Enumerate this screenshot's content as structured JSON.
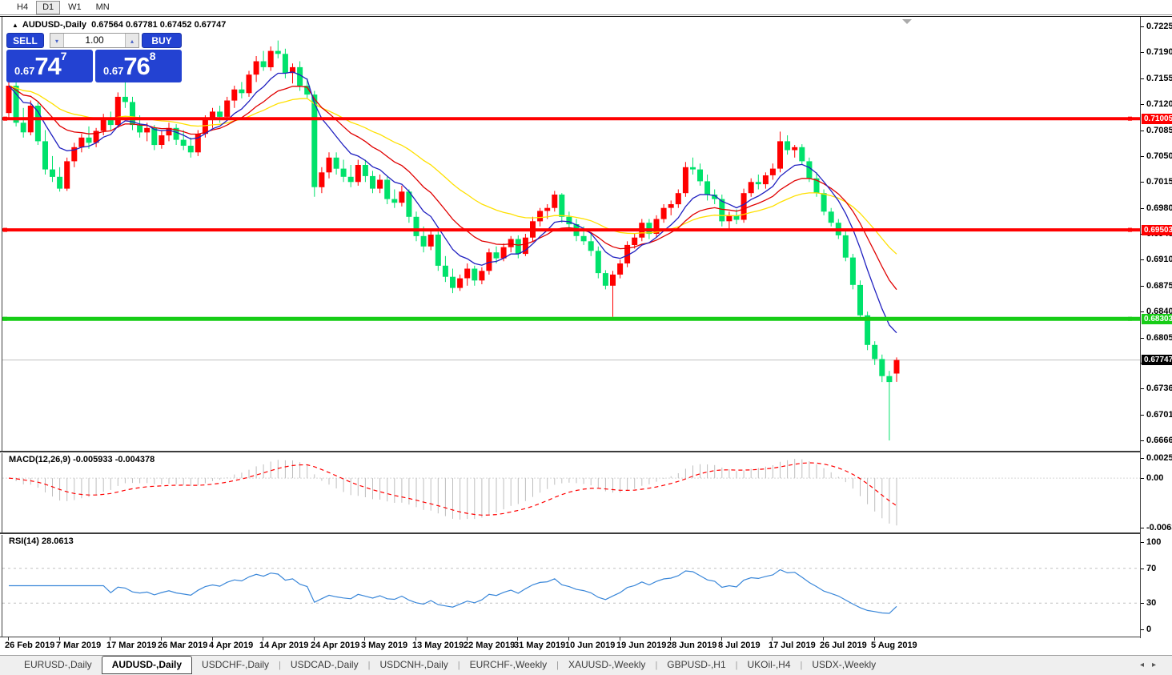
{
  "toolbar": {
    "timeframes": [
      {
        "label": "H4",
        "active": false
      },
      {
        "label": "D1",
        "active": true
      },
      {
        "label": "W1",
        "active": false
      },
      {
        "label": "MN",
        "active": false
      }
    ]
  },
  "title_bar": {
    "collapse_icon": "▲",
    "symbol_text": "AUDUSD-,Daily",
    "ohlc_text": "0.67564 0.67781 0.67452 0.67747"
  },
  "trade_panel": {
    "sell_label": "SELL",
    "buy_label": "BUY",
    "volume": "1.00",
    "spin_down_icon": "▾",
    "spin_up_icon": "▴",
    "sell_price_small": "0.67",
    "sell_price_big": "74",
    "sell_price_sup": "7",
    "buy_price_small": "0.67",
    "buy_price_big": "76",
    "buy_price_sup": "8",
    "panel_color": "#2342d2"
  },
  "chart_data": {
    "type": "candlestick",
    "symbol": "AUDUSD-,Daily",
    "bull_color": "#ff0000",
    "bear_color": "#00e26b",
    "price_range": {
      "top": 0.7238,
      "bottom": 0.66521
    },
    "price_axis_ticks": [
      "0.72250",
      "0.71900",
      "0.71550",
      "0.71200",
      "0.70850",
      "0.70500",
      "0.70150",
      "0.69800",
      "0.69450",
      "0.69100",
      "0.68750",
      "0.68400",
      "0.68050",
      "0.67710",
      "0.67360",
      "0.67010",
      "0.66660"
    ],
    "x_labels": [
      "26 Feb 2019",
      "7 Mar 2019",
      "17 Mar 2019",
      "26 Mar 2019",
      "4 Apr 2019",
      "14 Apr 2019",
      "24 Apr 2019",
      "3 May 2019",
      "13 May 2019",
      "22 May 2019",
      "31 May 2019",
      "10 Jun 2019",
      "19 Jun 2019",
      "28 Jun 2019",
      "8 Jul 2019",
      "17 Jul 2019",
      "26 Jul 2019",
      "5 Aug 2019"
    ],
    "x_label_interval_bars": 7,
    "horizontal_lines": [
      {
        "price": 0.71005,
        "label": "0.71005",
        "color": "#ff0000",
        "width": 4
      },
      {
        "price": 0.69503,
        "label": "0.69503",
        "color": "#ff0000",
        "width": 4
      },
      {
        "price": 0.68303,
        "label": "0.68303",
        "color": "#17cd17",
        "width": 5
      }
    ],
    "bid_price": {
      "value": 0.67747,
      "label": "0.67747",
      "line_color": "#c0c0c0",
      "badge_color": "#000000"
    },
    "moving_averages": [
      {
        "name": "slow",
        "period": 32,
        "color": "#ffe000"
      },
      {
        "name": "medium",
        "period": 16,
        "color": "#e00000"
      },
      {
        "name": "fast",
        "period": 8,
        "color": "#2020c0"
      }
    ],
    "candles_ohlc": [
      [
        0.7108,
        0.7155,
        0.7102,
        0.7145
      ],
      [
        0.7145,
        0.7168,
        0.709,
        0.7095
      ],
      [
        0.7095,
        0.7115,
        0.7075,
        0.7082
      ],
      [
        0.7082,
        0.7125,
        0.7078,
        0.7118
      ],
      [
        0.7118,
        0.7123,
        0.7065,
        0.707
      ],
      [
        0.707,
        0.7085,
        0.7025,
        0.7032
      ],
      [
        0.7032,
        0.705,
        0.7015,
        0.7022
      ],
      [
        0.7022,
        0.7035,
        0.7002,
        0.7006
      ],
      [
        0.7006,
        0.7048,
        0.7003,
        0.7043
      ],
      [
        0.7043,
        0.7068,
        0.7035,
        0.7062
      ],
      [
        0.7062,
        0.708,
        0.7055,
        0.7075
      ],
      [
        0.7075,
        0.709,
        0.706,
        0.7068
      ],
      [
        0.7068,
        0.7088,
        0.7062,
        0.7084
      ],
      [
        0.7084,
        0.7107,
        0.7078,
        0.7102
      ],
      [
        0.7102,
        0.711,
        0.7085,
        0.7092
      ],
      [
        0.7092,
        0.7136,
        0.7088,
        0.713
      ],
      [
        0.713,
        0.7168,
        0.7115,
        0.7123
      ],
      [
        0.7123,
        0.713,
        0.7085,
        0.7092
      ],
      [
        0.7092,
        0.7105,
        0.7075,
        0.7082
      ],
      [
        0.7082,
        0.7095,
        0.707,
        0.7088
      ],
      [
        0.7088,
        0.7092,
        0.7058,
        0.7065
      ],
      [
        0.7065,
        0.7085,
        0.706,
        0.7078
      ],
      [
        0.7078,
        0.7095,
        0.707,
        0.7088
      ],
      [
        0.7088,
        0.7093,
        0.7065,
        0.7072
      ],
      [
        0.7072,
        0.7085,
        0.7058,
        0.7064
      ],
      [
        0.7064,
        0.7075,
        0.7048,
        0.7055
      ],
      [
        0.7055,
        0.7085,
        0.705,
        0.708
      ],
      [
        0.708,
        0.7105,
        0.7075,
        0.71
      ],
      [
        0.71,
        0.7115,
        0.7088,
        0.711
      ],
      [
        0.711,
        0.7118,
        0.7095,
        0.7103
      ],
      [
        0.7103,
        0.713,
        0.71,
        0.7125
      ],
      [
        0.7125,
        0.7145,
        0.7115,
        0.714
      ],
      [
        0.714,
        0.715,
        0.7128,
        0.7135
      ],
      [
        0.7135,
        0.7165,
        0.713,
        0.716
      ],
      [
        0.716,
        0.7185,
        0.715,
        0.7178
      ],
      [
        0.7178,
        0.7192,
        0.7165,
        0.717
      ],
      [
        0.717,
        0.7198,
        0.7165,
        0.7192
      ],
      [
        0.7192,
        0.7206,
        0.7182,
        0.7188
      ],
      [
        0.7188,
        0.7195,
        0.7155,
        0.7162
      ],
      [
        0.7162,
        0.7175,
        0.7148,
        0.717
      ],
      [
        0.717,
        0.7178,
        0.7138,
        0.7145
      ],
      [
        0.7145,
        0.7155,
        0.7128,
        0.7133
      ],
      [
        0.7133,
        0.7138,
        0.6995,
        0.7008
      ],
      [
        0.7008,
        0.7035,
        0.7,
        0.7028
      ],
      [
        0.7028,
        0.7055,
        0.702,
        0.7048
      ],
      [
        0.7048,
        0.7055,
        0.7025,
        0.7033
      ],
      [
        0.7033,
        0.7045,
        0.7015,
        0.7022
      ],
      [
        0.7022,
        0.7038,
        0.7008,
        0.7015
      ],
      [
        0.7015,
        0.7045,
        0.701,
        0.7038
      ],
      [
        0.7038,
        0.7045,
        0.7015,
        0.7023
      ],
      [
        0.7023,
        0.703,
        0.7,
        0.7006
      ],
      [
        0.7006,
        0.7025,
        0.7,
        0.7018
      ],
      [
        0.7018,
        0.7022,
        0.6985,
        0.6992
      ],
      [
        0.6992,
        0.7005,
        0.698,
        0.6987
      ],
      [
        0.6987,
        0.701,
        0.6982,
        0.7002
      ],
      [
        0.7002,
        0.7005,
        0.696,
        0.6968
      ],
      [
        0.6968,
        0.6975,
        0.6935,
        0.6942
      ],
      [
        0.6942,
        0.6955,
        0.692,
        0.6928
      ],
      [
        0.6928,
        0.695,
        0.6923,
        0.6944
      ],
      [
        0.6944,
        0.6948,
        0.6895,
        0.6902
      ],
      [
        0.6902,
        0.6915,
        0.688,
        0.6887
      ],
      [
        0.6887,
        0.6898,
        0.6865,
        0.6872
      ],
      [
        0.6872,
        0.689,
        0.6868,
        0.6885
      ],
      [
        0.6885,
        0.6905,
        0.6875,
        0.6898
      ],
      [
        0.6898,
        0.6902,
        0.6875,
        0.6882
      ],
      [
        0.6882,
        0.69,
        0.6877,
        0.6895
      ],
      [
        0.6895,
        0.6925,
        0.689,
        0.692
      ],
      [
        0.692,
        0.6928,
        0.6905,
        0.6912
      ],
      [
        0.6912,
        0.6932,
        0.6908,
        0.6927
      ],
      [
        0.6927,
        0.6942,
        0.692,
        0.6938
      ],
      [
        0.6938,
        0.6943,
        0.6912,
        0.6918
      ],
      [
        0.6918,
        0.6945,
        0.6915,
        0.694
      ],
      [
        0.694,
        0.6968,
        0.6935,
        0.6962
      ],
      [
        0.6962,
        0.698,
        0.6955,
        0.6976
      ],
      [
        0.6976,
        0.6985,
        0.6965,
        0.698
      ],
      [
        0.698,
        0.7003,
        0.6975,
        0.6998
      ],
      [
        0.6998,
        0.7,
        0.696,
        0.6968
      ],
      [
        0.6968,
        0.6975,
        0.6952,
        0.6958
      ],
      [
        0.6958,
        0.6965,
        0.6935,
        0.6942
      ],
      [
        0.6942,
        0.6955,
        0.693,
        0.6935
      ],
      [
        0.6935,
        0.6945,
        0.6915,
        0.6922
      ],
      [
        0.6922,
        0.6928,
        0.6885,
        0.6892
      ],
      [
        0.6892,
        0.6896,
        0.687,
        0.6875
      ],
      [
        0.6875,
        0.6895,
        0.6833,
        0.689
      ],
      [
        0.689,
        0.691,
        0.6885,
        0.6905
      ],
      [
        0.6905,
        0.6935,
        0.69,
        0.693
      ],
      [
        0.693,
        0.6945,
        0.6925,
        0.694
      ],
      [
        0.694,
        0.6965,
        0.6935,
        0.696
      ],
      [
        0.696,
        0.6965,
        0.6938,
        0.6945
      ],
      [
        0.6945,
        0.697,
        0.694,
        0.6965
      ],
      [
        0.6965,
        0.6985,
        0.696,
        0.698
      ],
      [
        0.698,
        0.699,
        0.697,
        0.6985
      ],
      [
        0.6985,
        0.7005,
        0.698,
        0.7
      ],
      [
        0.7,
        0.7042,
        0.6995,
        0.7035
      ],
      [
        0.7035,
        0.7048,
        0.7025,
        0.7032
      ],
      [
        0.7032,
        0.704,
        0.701,
        0.7016
      ],
      [
        0.7016,
        0.7025,
        0.699,
        0.6998
      ],
      [
        0.6998,
        0.7005,
        0.6985,
        0.6992
      ],
      [
        0.6992,
        0.6998,
        0.6955,
        0.6962
      ],
      [
        0.6962,
        0.6975,
        0.695,
        0.697
      ],
      [
        0.697,
        0.6978,
        0.6958,
        0.6964
      ],
      [
        0.6964,
        0.7006,
        0.696,
        0.7
      ],
      [
        0.7,
        0.702,
        0.6995,
        0.7015
      ],
      [
        0.7015,
        0.7025,
        0.7005,
        0.7012
      ],
      [
        0.7012,
        0.7028,
        0.7006,
        0.7024
      ],
      [
        0.7024,
        0.704,
        0.7018,
        0.7033
      ],
      [
        0.7033,
        0.7083,
        0.7028,
        0.707
      ],
      [
        0.707,
        0.7078,
        0.7052,
        0.7058
      ],
      [
        0.7058,
        0.7065,
        0.7048,
        0.7062
      ],
      [
        0.7062,
        0.7066,
        0.7038,
        0.7043
      ],
      [
        0.7043,
        0.7048,
        0.7015,
        0.702
      ],
      [
        0.702,
        0.7028,
        0.6995,
        0.7
      ],
      [
        0.7,
        0.7005,
        0.697,
        0.6975
      ],
      [
        0.6975,
        0.698,
        0.6955,
        0.696
      ],
      [
        0.696,
        0.6965,
        0.6938,
        0.6943
      ],
      [
        0.6943,
        0.695,
        0.6908,
        0.6913
      ],
      [
        0.6913,
        0.6918,
        0.687,
        0.6876
      ],
      [
        0.6876,
        0.6882,
        0.6828,
        0.6835
      ],
      [
        0.6835,
        0.684,
        0.6788,
        0.6795
      ],
      [
        0.6795,
        0.68,
        0.6768,
        0.6776
      ],
      [
        0.6776,
        0.6782,
        0.6745,
        0.6753
      ],
      [
        0.6753,
        0.676,
        0.6666,
        0.6745
      ],
      [
        0.67564,
        0.67781,
        0.67452,
        0.67747
      ]
    ],
    "indicators": {
      "macd": {
        "label": "MACD(12,26,9)",
        "fast": 12,
        "slow": 26,
        "signal": 9,
        "current_main": "-0.005933",
        "current_signal": "-0.004378",
        "axis_ticks": [
          "0.002574",
          "0.00",
          "-0.006338"
        ],
        "histogram_color": "#bebebe",
        "signal_color": "#ff0000"
      },
      "rsi": {
        "label": "RSI(14)",
        "period": 14,
        "current": "28.0613",
        "axis_ticks": [
          "100",
          "70",
          "30",
          "0"
        ],
        "levels": [
          70,
          30
        ],
        "line_color": "#3a87d9"
      }
    }
  },
  "tab_bar": {
    "scroll_left_icon": "◂",
    "scroll_right_icon": "▸",
    "tabs": [
      {
        "label": "EURUSD-,Daily",
        "active": false
      },
      {
        "label": "AUDUSD-,Daily",
        "active": true
      },
      {
        "label": "USDCHF-,Daily",
        "active": false
      },
      {
        "label": "USDCAD-,Daily",
        "active": false
      },
      {
        "label": "USDCNH-,Daily",
        "active": false
      },
      {
        "label": "EURCHF-,Weekly",
        "active": false
      },
      {
        "label": "XAUUSD-,Weekly",
        "active": false
      },
      {
        "label": "GBPUSD-,H1",
        "active": false
      },
      {
        "label": "UKOil-,H4",
        "active": false
      },
      {
        "label": "USDX-,Weekly",
        "active": false
      }
    ]
  }
}
